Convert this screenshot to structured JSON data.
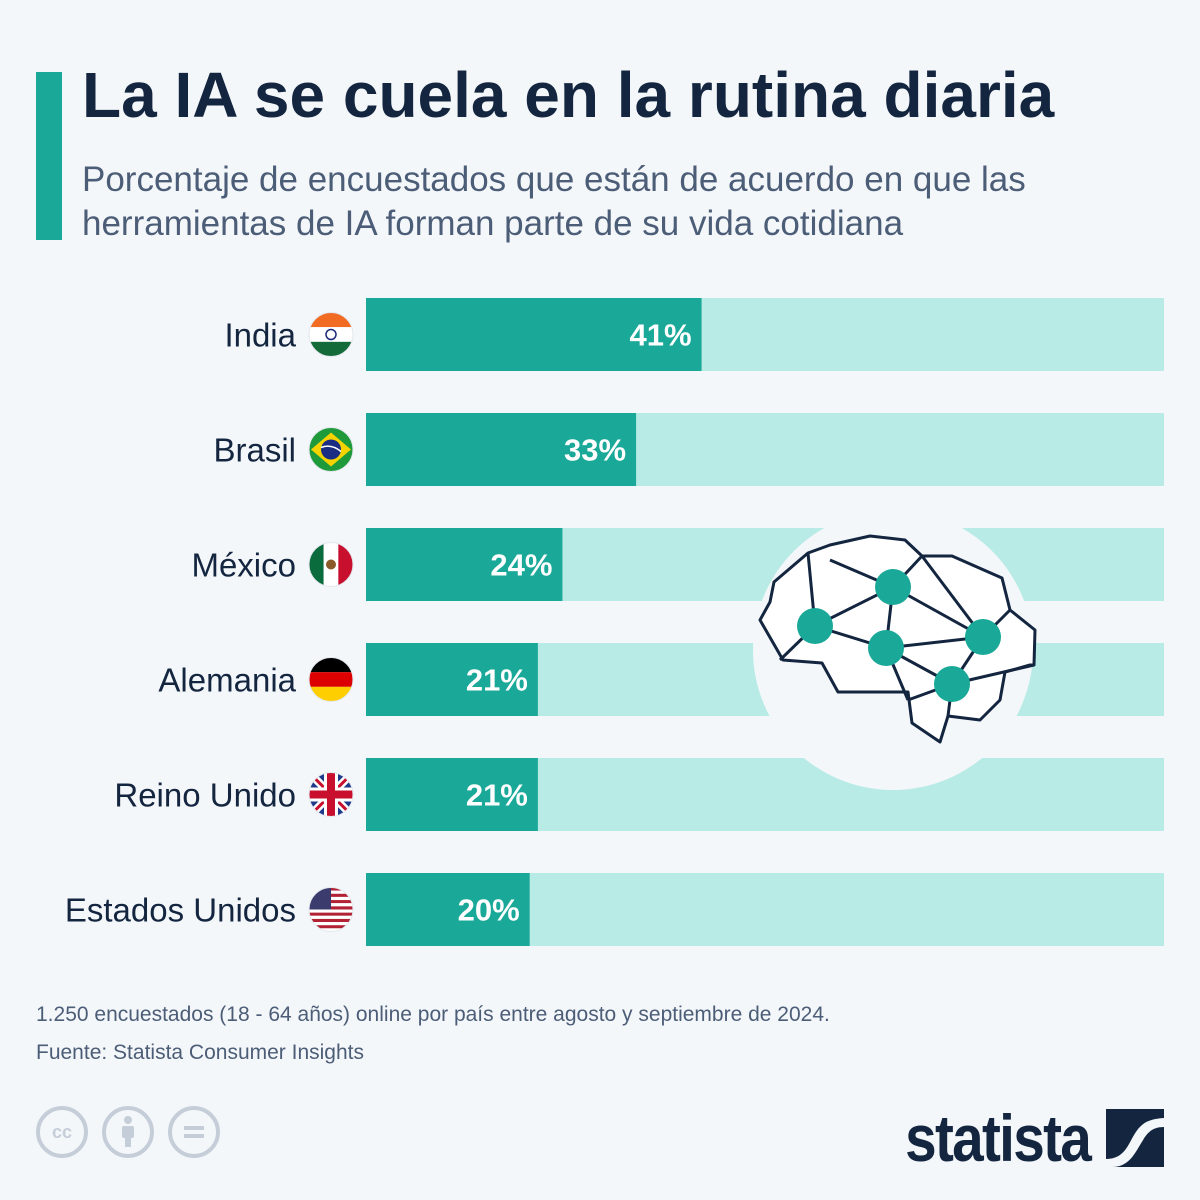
{
  "header": {
    "title": "La IA se cuela en la rutina diaria",
    "subtitle": "Porcentaje de encuestados que están de acuerdo en que las herramientas de IA forman parte de su vida cotidiana"
  },
  "colors": {
    "accent": "#1aa898",
    "track": "#b9ebe6",
    "dark": "#13253f",
    "muted": "#4c5d77"
  },
  "chart_data": {
    "type": "bar",
    "orientation": "horizontal",
    "title": "La IA se cuela en la rutina diaria",
    "subtitle": "Porcentaje de encuestados que están de acuerdo en que las herramientas de IA forman parte de su vida cotidiana",
    "xlabel": "",
    "ylabel": "",
    "xlim": [
      0,
      100
    ],
    "unit": "%",
    "grid": false,
    "categories": [
      "India",
      "Brasil",
      "México",
      "Alemania",
      "Reino Unido",
      "Estados Unidos"
    ],
    "flags": [
      "india-flag",
      "brazil-flag",
      "mexico-flag",
      "germany-flag",
      "uk-flag",
      "usa-flag"
    ],
    "values": [
      41,
      33,
      24,
      21,
      21,
      20
    ],
    "labels": [
      "41%",
      "33%",
      "24%",
      "21%",
      "21%",
      "20%"
    ]
  },
  "illustration": "brain-network-icon",
  "footer": {
    "note": "1.250 encuestados (18 - 64 años) online por país entre agosto y septiembre de 2024.",
    "source": "Fuente: Statista Consumer Insights",
    "license_icons": [
      "cc-icon",
      "attribution-icon",
      "no-derivatives-icon"
    ],
    "cc_label": "cc",
    "brand": "statista"
  }
}
